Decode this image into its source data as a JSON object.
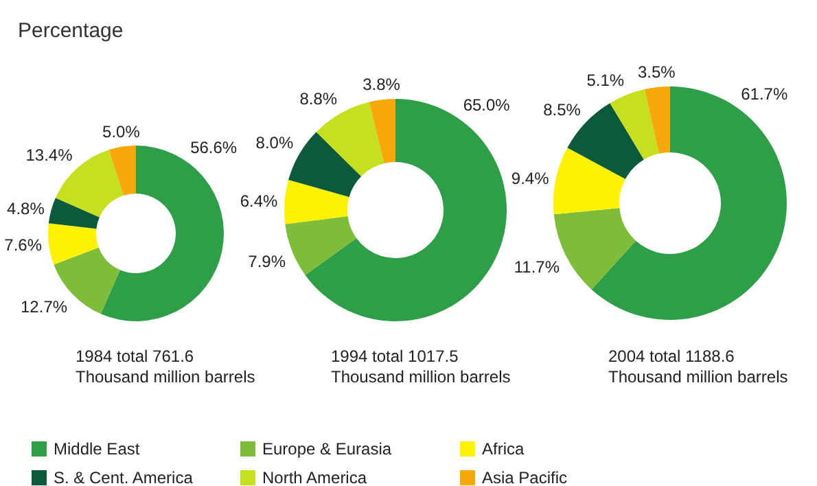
{
  "chart_data": [
    {
      "type": "donut",
      "title": "Percentage",
      "categories": [
        "Middle East",
        "Europe & Eurasia",
        "Africa",
        "S. & Cent. America",
        "North America",
        "Asia Pacific"
      ],
      "colors": [
        "#2e9e48",
        "#7dbd3a",
        "#fff200",
        "#0b5a3a",
        "#c6df1f",
        "#f7a80a"
      ],
      "values": [
        56.6,
        12.7,
        7.6,
        4.8,
        13.4,
        5.0
      ],
      "value_labels": [
        "56.6%",
        "12.7%",
        "7.6%",
        "4.8%",
        "13.4%",
        "5.0%"
      ],
      "annotations": [
        "1984 total 761.6\nThousand million barrels"
      ],
      "legend": "bottom"
    },
    {
      "type": "donut",
      "colors": [
        "#2e9e48",
        "#7dbd3a",
        "#fff200",
        "#0b5a3a",
        "#c6df1f",
        "#f7a80a"
      ],
      "values": [
        65.0,
        7.9,
        6.4,
        8.0,
        8.8,
        3.8
      ],
      "value_labels": [
        "65.0%",
        "7.9%",
        "6.4%",
        "8.0%",
        "8.8%",
        "3.8%"
      ],
      "annotations": [
        "1994 total 1017.5\nThousand million barrels"
      ]
    },
    {
      "type": "donut",
      "colors": [
        "#2e9e48",
        "#7dbd3a",
        "#fff200",
        "#0b5a3a",
        "#c6df1f",
        "#f7a80a"
      ],
      "values": [
        61.7,
        11.7,
        9.4,
        8.5,
        5.1,
        3.5
      ],
      "value_labels": [
        "61.7%",
        "11.7%",
        "9.4%",
        "8.5%",
        "5.1%",
        "3.5%"
      ],
      "annotations": [
        "2004 total 1188.6\nThousand million barrels"
      ]
    }
  ]
}
